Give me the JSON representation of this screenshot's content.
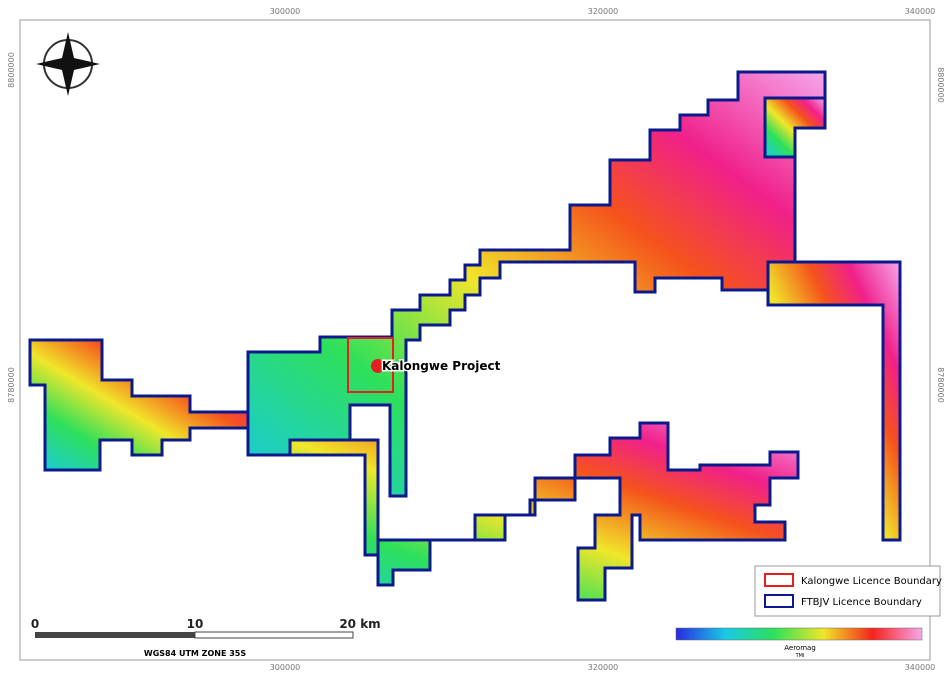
{
  "grid_labels": {
    "top": [
      "300000",
      "320000",
      "340000"
    ],
    "bottom": [
      "300000",
      "320000",
      "340000"
    ],
    "left": [
      "8800000",
      "8780000"
    ],
    "right": [
      "8800000",
      "8780000"
    ]
  },
  "annotation": "Kalongwe Project",
  "legend": [
    "Kalongwe Licence Boundary",
    "FTBJV Licence Boundary"
  ],
  "scale_bar": {
    "ticks": [
      "0",
      "10",
      "20 km"
    ],
    "projection": "WGS84 UTM ZONE 35S"
  },
  "colorbar": {
    "title": "Aeromag",
    "subtitle": "TMI"
  }
}
